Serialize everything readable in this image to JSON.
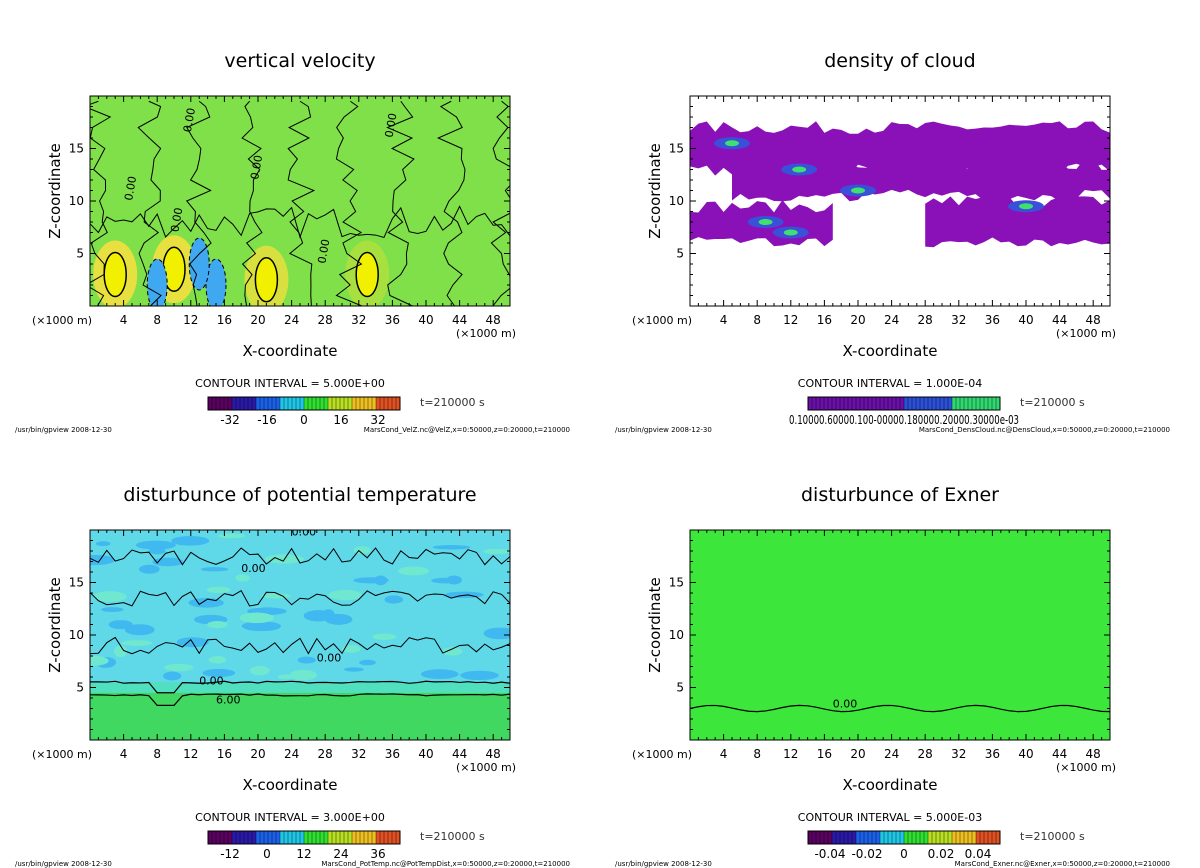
{
  "chart_data": [
    {
      "type": "heatmap",
      "title": "vertical velocity",
      "xlabel": "X-coordinate",
      "ylabel": "Z-coordinate",
      "x_unit_left": "(×1000 m)",
      "x_unit_right": "(×1000 m)",
      "xlim": [
        0,
        50
      ],
      "ylim": [
        0,
        20
      ],
      "x_ticks": [
        4,
        8,
        12,
        16,
        20,
        24,
        28,
        32,
        36,
        40,
        44,
        48
      ],
      "y_ticks": [
        5,
        10,
        15
      ],
      "contour_interval": "CONTOUR INTERVAL = 5.000E+00",
      "time": "t=210000 s",
      "colorbar_ticks": [
        "-32",
        "-16",
        "0",
        "16",
        "32"
      ],
      "colormap": "rainbow",
      "footer_left": "/usr/bin/gpview  2008-12-30",
      "footer_right": "MarsCond_VelZ.nc@VelZ,x=0:50000,z=0:20000,t=210000",
      "contour_labels": [
        "0.00",
        "0.00",
        "0.00",
        "0.00",
        "0.00",
        "0.00"
      ],
      "background_color": "#7fe04a"
    },
    {
      "type": "heatmap",
      "title": "density of cloud",
      "xlabel": "X-coordinate",
      "ylabel": "Z-coordinate",
      "x_unit_left": "(×1000 m)",
      "x_unit_right": "(×1000 m)",
      "xlim": [
        0,
        50
      ],
      "ylim": [
        0,
        20
      ],
      "x_ticks": [
        4,
        8,
        12,
        16,
        20,
        24,
        28,
        32,
        36,
        40,
        44,
        48
      ],
      "y_ticks": [
        5,
        10,
        15
      ],
      "contour_interval": "CONTOUR INTERVAL = 1.000E-04",
      "time": "t=210000 s",
      "colorbar_ticks_text": "0.10000.60000.100-00000.180000.20000.30000e-03",
      "colormap": "purple-green",
      "footer_left": "/usr/bin/gpview  2008-12-30",
      "footer_right": "MarsCond_DensCloud.nc@DensCloud,x=0:50000,z=0:20000,t=210000",
      "background_color": "#ffffff"
    },
    {
      "type": "heatmap",
      "title": "disturbunce of potential temperature",
      "xlabel": "X-coordinate",
      "ylabel": "Z-coordinate",
      "x_unit_left": "(×1000 m)",
      "x_unit_right": "(×1000 m)",
      "xlim": [
        0,
        50
      ],
      "ylim": [
        0,
        20
      ],
      "x_ticks": [
        4,
        8,
        12,
        16,
        20,
        24,
        28,
        32,
        36,
        40,
        44,
        48
      ],
      "y_ticks": [
        5,
        10,
        15
      ],
      "contour_interval": "CONTOUR INTERVAL = 3.000E+00",
      "time": "t=210000 s",
      "colorbar_ticks": [
        "-12",
        "0",
        "12",
        "24",
        "36"
      ],
      "colormap": "rainbow",
      "footer_left": "/usr/bin/gpview  2008-12-30",
      "footer_right": "MarsCond_PotTemp.nc@PotTempDist,x=0:50000,z=0:20000,t=210000",
      "contour_labels": [
        "0.00",
        "0.00",
        "0.00",
        "0.00",
        "6.00"
      ],
      "background_color": "#5fd8e8"
    },
    {
      "type": "heatmap",
      "title": "disturbunce of Exner",
      "xlabel": "X-coordinate",
      "ylabel": "Z-coordinate",
      "x_unit_left": "(×1000 m)",
      "x_unit_right": "(×1000 m)",
      "xlim": [
        0,
        50
      ],
      "ylim": [
        0,
        20
      ],
      "x_ticks": [
        4,
        8,
        12,
        16,
        20,
        24,
        28,
        32,
        36,
        40,
        44,
        48
      ],
      "y_ticks": [
        5,
        10,
        15
      ],
      "contour_interval": "CONTOUR INTERVAL = 5.000E-03",
      "time": "t=210000 s",
      "colorbar_ticks": [
        "-0.04",
        "-0.02",
        "0",
        "0.02",
        "0.04"
      ],
      "colormap": "rainbow",
      "footer_left": "/usr/bin/gpview  2008-12-30",
      "footer_right": "MarsCond_Exner.nc@Exner,x=0:50000,z=0:20000,t=210000",
      "contour_labels": [
        "0.00"
      ],
      "background_color": "#3ce63a"
    }
  ]
}
